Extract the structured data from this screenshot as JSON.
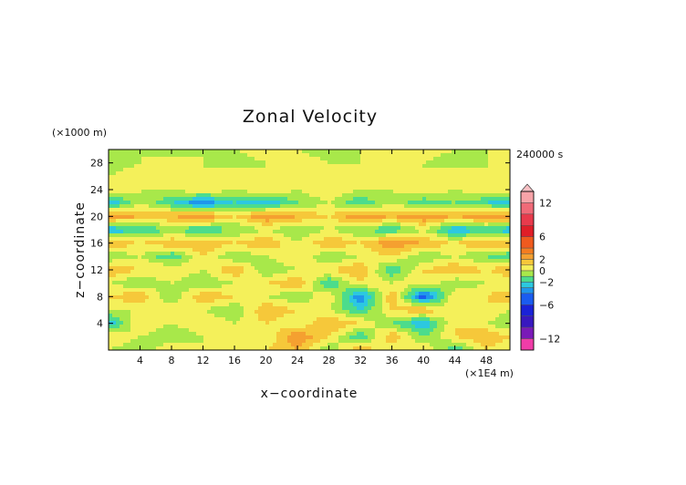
{
  "chart_data": {
    "type": "heatmap",
    "title": "Zonal Velocity",
    "xlabel": "x−coordinate",
    "ylabel": "z−coordinate",
    "x_unit": "(×1E4 m)",
    "y_unit": "(×1000 m)",
    "time_label": "240000 s",
    "xlim": [
      0,
      51
    ],
    "ylim": [
      0,
      30
    ],
    "x_ticks": [
      "4",
      "8",
      "12",
      "16",
      "20",
      "24",
      "28",
      "32",
      "36",
      "40",
      "44",
      "48"
    ],
    "y_ticks": [
      "4",
      "8",
      "12",
      "16",
      "20",
      "24",
      "28"
    ],
    "x_tick_values": [
      4,
      8,
      12,
      16,
      20,
      24,
      28,
      32,
      36,
      40,
      44,
      48
    ],
    "y_tick_values": [
      4,
      8,
      12,
      16,
      20,
      24,
      28
    ],
    "colorbar": {
      "labels": [
        "12",
        "6",
        "2",
        "0",
        "−2",
        "−6",
        "−12"
      ],
      "label_values": [
        12,
        6,
        2,
        0,
        -2,
        -6,
        -12
      ],
      "range": [
        -14,
        14
      ],
      "bands": [
        {
          "lo": 12,
          "hi": 14,
          "color": "#f7a3a8"
        },
        {
          "lo": 10,
          "hi": 12,
          "color": "#f06a78"
        },
        {
          "lo": 8,
          "hi": 10,
          "color": "#e83a4c"
        },
        {
          "lo": 6,
          "hi": 8,
          "color": "#e01e28"
        },
        {
          "lo": 4,
          "hi": 6,
          "color": "#f05a1e"
        },
        {
          "lo": 3,
          "hi": 4,
          "color": "#f47c20"
        },
        {
          "lo": 2,
          "hi": 3,
          "color": "#f5a030"
        },
        {
          "lo": 1,
          "hi": 2,
          "color": "#f6c83a"
        },
        {
          "lo": 0,
          "hi": 1,
          "color": "#f4f05a"
        },
        {
          "lo": -1,
          "hi": 0,
          "color": "#a8e84a"
        },
        {
          "lo": -2,
          "hi": -1,
          "color": "#4cdc8c"
        },
        {
          "lo": -3,
          "hi": -2,
          "color": "#2cc8e0"
        },
        {
          "lo": -4,
          "hi": -3,
          "color": "#1f96ec"
        },
        {
          "lo": -6,
          "hi": -4,
          "color": "#1a5cf0"
        },
        {
          "lo": -8,
          "hi": -6,
          "color": "#1a22d8"
        },
        {
          "lo": -10,
          "hi": -8,
          "color": "#3818c0"
        },
        {
          "lo": -12,
          "hi": -10,
          "color": "#7a1ab8"
        },
        {
          "lo": -14,
          "hi": -12,
          "color": "#f03ca8"
        }
      ]
    },
    "field_grid": {
      "note_z_km": [
        0,
        2,
        4,
        6,
        8,
        10,
        12,
        14,
        16,
        18,
        20,
        22,
        24,
        26,
        28,
        30
      ],
      "x_e4m": [
        0,
        4,
        8,
        12,
        16,
        20,
        24,
        28,
        32,
        36,
        40,
        44,
        48,
        51
      ],
      "values": [
        [
          0,
          -1,
          1,
          0,
          0,
          1,
          2,
          -1,
          2,
          0,
          1,
          -2,
          1,
          0
        ],
        [
          1,
          0,
          -1,
          0,
          1,
          0,
          3,
          1,
          -2,
          2,
          -1,
          1,
          2,
          1
        ],
        [
          -3,
          1,
          0,
          1,
          0,
          1,
          0,
          2,
          1,
          -1,
          -3,
          1,
          0,
          -1
        ],
        [
          0,
          0,
          1,
          0,
          -1,
          2,
          1,
          0,
          -2,
          1,
          2,
          0,
          1,
          0
        ],
        [
          1,
          2,
          -1,
          2,
          1,
          0,
          -1,
          1,
          -4,
          2,
          -5,
          1,
          1,
          2
        ],
        [
          0,
          -1,
          0,
          -1,
          0,
          1,
          2,
          -2,
          1,
          0,
          1,
          -1,
          0,
          0
        ],
        [
          2,
          1,
          1,
          0,
          2,
          -1,
          0,
          1,
          2,
          -2,
          1,
          2,
          1,
          2
        ],
        [
          -1,
          0,
          -2,
          1,
          -1,
          0,
          1,
          -1,
          0,
          1,
          -1,
          0,
          -1,
          -2
        ],
        [
          2,
          1,
          2,
          2,
          1,
          2,
          0,
          2,
          1,
          3,
          2,
          1,
          2,
          2
        ],
        [
          -3,
          -2,
          -1,
          -2,
          -1,
          0,
          -1,
          0,
          -1,
          -2,
          0,
          -3,
          -2,
          -3
        ],
        [
          3,
          2,
          2,
          3,
          1,
          3,
          2,
          1,
          3,
          2,
          3,
          2,
          3,
          3
        ],
        [
          -3,
          0,
          -2,
          -4,
          -2,
          -3,
          -1,
          0,
          -2,
          0,
          -2,
          -1,
          -2,
          -3
        ],
        [
          1,
          0,
          0,
          1,
          0,
          1,
          0,
          1,
          0,
          0,
          1,
          0,
          1,
          1
        ],
        [
          0,
          1,
          0,
          0,
          1,
          0,
          0,
          0,
          1,
          0,
          0,
          1,
          0,
          0
        ],
        [
          -1,
          0,
          1,
          0,
          -1,
          0,
          1,
          0,
          0,
          1,
          0,
          -1,
          0,
          1
        ],
        [
          0,
          0,
          -1,
          0,
          0,
          1,
          0,
          -1,
          0,
          0,
          1,
          0,
          0,
          0
        ]
      ]
    }
  }
}
